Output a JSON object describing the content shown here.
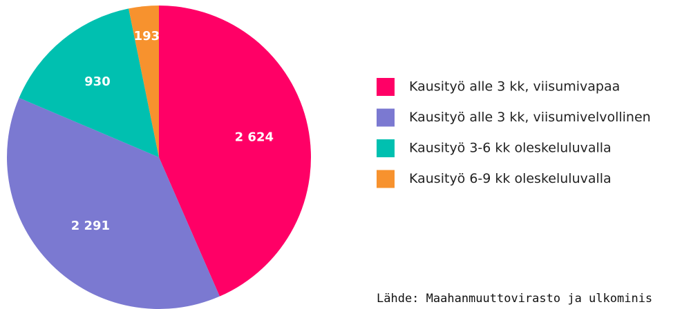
{
  "chart_data": {
    "type": "pie",
    "categories": [
      "Kausityö alle 3 kk, viisumivapaa",
      "Kausityö alle 3 kk, viisumivelvollinen",
      "Kausityö 3-6 kk oleskeluluvalla",
      "Kausityö 6-9 kk oleskeluluvalla"
    ],
    "values": [
      2624,
      2291,
      930,
      193
    ],
    "value_labels": [
      "2 624",
      "2 291",
      "930",
      "193"
    ],
    "colors": [
      "#ff0066",
      "#7b79d1",
      "#00c0b0",
      "#f7922e"
    ],
    "source": "Lähde: Maahanmuuttovirasto ja ulkominis"
  }
}
